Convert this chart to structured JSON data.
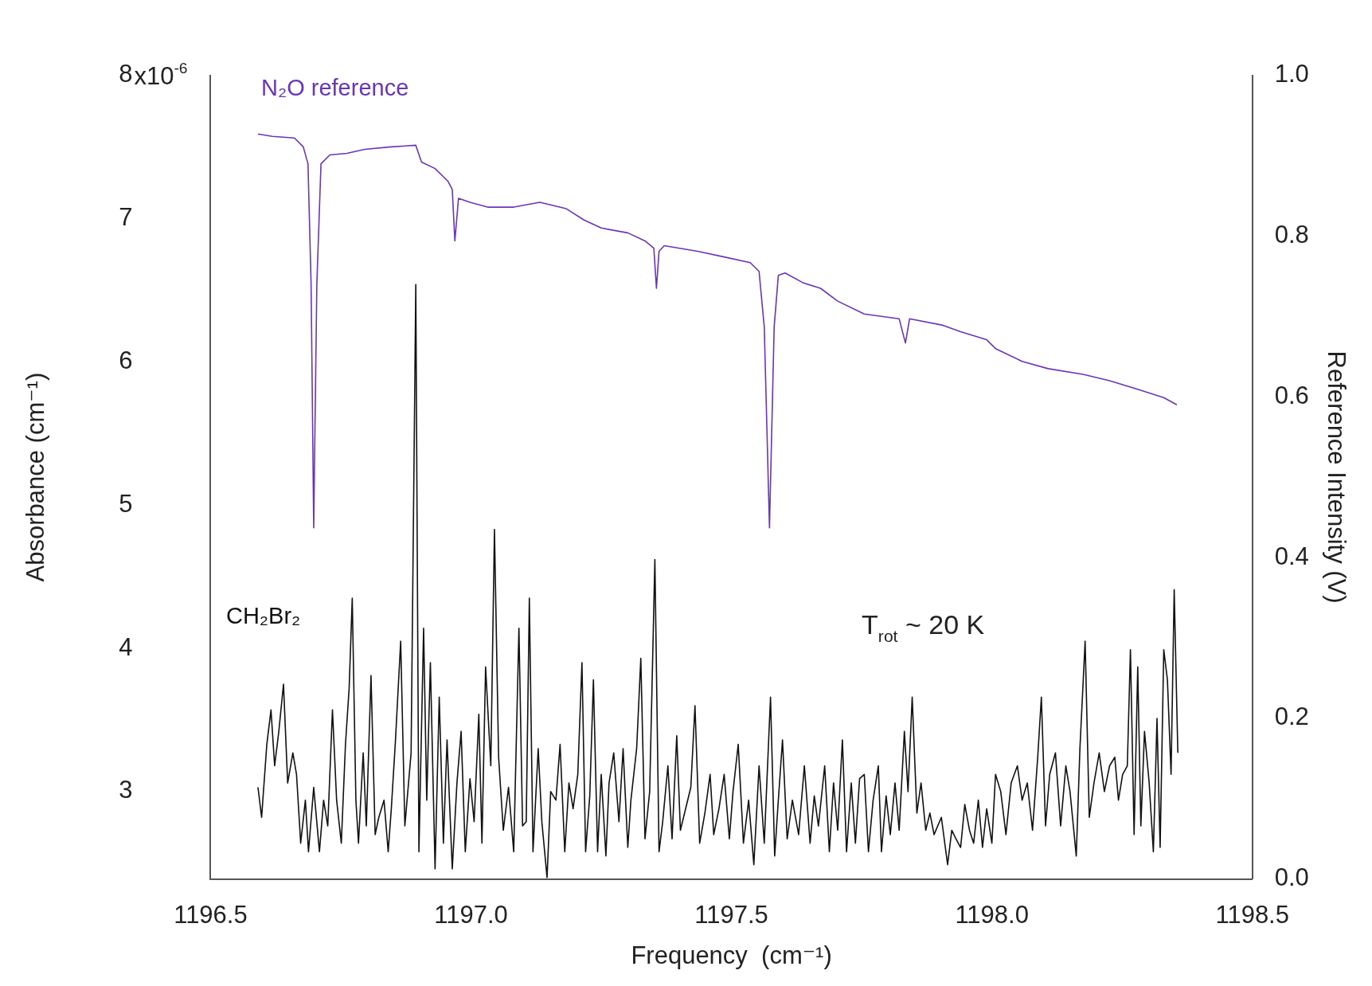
{
  "chart_data": {
    "type": "line",
    "xlabel": "Frequency  (cm⁻¹)",
    "ylabel": "Absorbance (cm⁻¹)",
    "y2label": "Reference Intensity (V)",
    "annotations": [
      "x10$^{-6}$",
      "T$_{rot}$ ~ 20 K"
    ],
    "xlim": [
      1196.5,
      1198.5
    ],
    "xticks": [
      {
        "value": 1196.5,
        "label": "1196.5"
      },
      {
        "value": 1197,
        "label": "1197.0"
      },
      {
        "value": 1197.5,
        "label": "1197.5"
      },
      {
        "value": 1198,
        "label": "1198.0"
      },
      {
        "value": 1198.5,
        "label": "1198.5"
      }
    ],
    "ylim": [
      2.39,
      8
    ],
    "yticks": [
      3,
      4,
      5,
      6,
      7,
      8
    ],
    "y2lim": [
      0,
      1
    ],
    "y2ticks": [
      {
        "value": 0,
        "label": "0.0"
      },
      {
        "value": 0.2,
        "label": "0.2"
      },
      {
        "value": 0.4,
        "label": "0.4"
      },
      {
        "value": 0.6,
        "label": "0.6"
      },
      {
        "value": 0.8,
        "label": "0.8"
      },
      {
        "value": 1,
        "label": "1.0"
      }
    ],
    "grid": false,
    "legend": false,
    "marker": "none",
    "line_style": "solid",
    "series": [
      {
        "name": "N₂O reference",
        "color": "#6a35b8",
        "axis": "y2",
        "x": [
          1196.591,
          1196.619,
          1196.661,
          1196.678,
          1196.687,
          1196.693,
          1196.698,
          1196.704,
          1196.712,
          1196.729,
          1196.762,
          1196.796,
          1196.847,
          1196.894,
          1196.905,
          1196.931,
          1196.956,
          1196.964,
          1196.969,
          1196.976,
          1196.998,
          1197.032,
          1197.082,
          1197.132,
          1197.183,
          1197.217,
          1197.25,
          1197.301,
          1197.334,
          1197.351,
          1197.356,
          1197.361,
          1197.371,
          1197.435,
          1197.486,
          1197.536,
          1197.553,
          1197.563,
          1197.573,
          1197.582,
          1197.59,
          1197.603,
          1197.637,
          1197.671,
          1197.704,
          1197.755,
          1197.822,
          1197.834,
          1197.842,
          1197.906,
          1197.94,
          1197.99,
          1198.007,
          1198.058,
          1198.108,
          1198.175,
          1198.226,
          1198.276,
          1198.33,
          1198.355
        ],
        "values": [
          0.927,
          0.924,
          0.922,
          0.911,
          0.89,
          0.74,
          0.437,
          0.74,
          0.89,
          0.901,
          0.903,
          0.908,
          0.911,
          0.913,
          0.892,
          0.884,
          0.868,
          0.858,
          0.794,
          0.847,
          0.842,
          0.836,
          0.836,
          0.842,
          0.834,
          0.82,
          0.81,
          0.804,
          0.794,
          0.785,
          0.735,
          0.781,
          0.788,
          0.781,
          0.774,
          0.767,
          0.756,
          0.687,
          0.437,
          0.687,
          0.751,
          0.754,
          0.742,
          0.735,
          0.719,
          0.703,
          0.697,
          0.667,
          0.697,
          0.689,
          0.681,
          0.671,
          0.66,
          0.644,
          0.635,
          0.628,
          0.62,
          0.61,
          0.599,
          0.59
        ]
      },
      {
        "name": "CH₂Br₂",
        "color": "#111111",
        "x": [
          1196.591,
          1196.598,
          1196.608,
          1196.616,
          1196.623,
          1196.631,
          1196.64,
          1196.648,
          1196.658,
          1196.665,
          1196.673,
          1196.682,
          1196.688,
          1196.698,
          1196.709,
          1196.717,
          1196.725,
          1196.734,
          1196.742,
          1196.751,
          1196.759,
          1196.766,
          1196.772,
          1196.779,
          1196.784,
          1196.793,
          1196.799,
          1196.808,
          1196.816,
          1196.823,
          1196.833,
          1196.841,
          1196.847,
          1196.855,
          1196.865,
          1196.873,
          1196.885,
          1196.894,
          1196.9,
          1196.909,
          1196.915,
          1196.922,
          1196.931,
          1196.939,
          1196.947,
          1196.954,
          1196.964,
          1196.973,
          1196.981,
          1196.989,
          1196.998,
          1197.006,
          1197.015,
          1197.021,
          1197.028,
          1197.038,
          1197.045,
          1197.053,
          1197.062,
          1197.072,
          1197.082,
          1197.092,
          1197.099,
          1197.106,
          1197.112,
          1197.119,
          1197.129,
          1197.136,
          1197.146,
          1197.153,
          1197.163,
          1197.171,
          1197.18,
          1197.188,
          1197.196,
          1197.205,
          1197.213,
          1197.22,
          1197.228,
          1197.235,
          1197.243,
          1197.25,
          1197.259,
          1197.265,
          1197.274,
          1197.284,
          1197.292,
          1197.301,
          1197.307,
          1197.318,
          1197.326,
          1197.334,
          1197.343,
          1197.353,
          1197.361,
          1197.368,
          1197.378,
          1197.386,
          1197.395,
          1197.402,
          1197.412,
          1197.422,
          1197.43,
          1197.439,
          1197.449,
          1197.459,
          1197.466,
          1197.476,
          1197.486,
          1197.496,
          1197.503,
          1197.513,
          1197.523,
          1197.533,
          1197.543,
          1197.553,
          1197.563,
          1197.575,
          1197.583,
          1197.59,
          1197.598,
          1197.607,
          1197.617,
          1197.629,
          1197.64,
          1197.651,
          1197.659,
          1197.667,
          1197.679,
          1197.688,
          1197.696,
          1197.704,
          1197.713,
          1197.721,
          1197.73,
          1197.738,
          1197.746,
          1197.755,
          1197.763,
          1197.772,
          1197.782,
          1197.788,
          1197.797,
          1197.805,
          1197.814,
          1197.822,
          1197.832,
          1197.839,
          1197.847,
          1197.856,
          1197.864,
          1197.873,
          1197.881,
          1197.889,
          1197.903,
          1197.915,
          1197.923,
          1197.931,
          1197.94,
          1197.948,
          1197.957,
          1197.965,
          1197.974,
          1197.982,
          1197.99,
          1198,
          1198.007,
          1198.017,
          1198.027,
          1198.037,
          1198.049,
          1198.058,
          1198.068,
          1198.078,
          1198.088,
          1198.095,
          1198.103,
          1198.111,
          1198.122,
          1198.132,
          1198.142,
          1198.15,
          1198.162,
          1198.169,
          1198.179,
          1198.187,
          1198.196,
          1198.206,
          1198.216,
          1198.226,
          1198.236,
          1198.243,
          1198.251,
          1198.26,
          1198.266,
          1198.273,
          1198.28,
          1198.286,
          1198.293,
          1198.302,
          1198.31,
          1198.317,
          1198.323,
          1198.33,
          1198.337,
          1198.344,
          1198.35,
          1198.357
        ],
        "values": [
          3.03,
          2.82,
          3.33,
          3.57,
          3.18,
          3.42,
          3.75,
          3.06,
          3.27,
          3.12,
          2.64,
          2.94,
          2.58,
          3.03,
          2.58,
          2.94,
          2.76,
          3.57,
          2.94,
          2.64,
          3.33,
          3.72,
          4.35,
          2.94,
          2.64,
          3.27,
          2.76,
          3.81,
          2.7,
          2.82,
          2.94,
          2.58,
          2.88,
          3.36,
          4.05,
          2.76,
          3.27,
          6.54,
          2.58,
          4.14,
          2.94,
          3.9,
          2.46,
          3.66,
          2.64,
          3.36,
          2.46,
          3.06,
          3.42,
          2.58,
          3.09,
          2.79,
          3.54,
          2.64,
          3.87,
          3.18,
          4.83,
          3.24,
          2.73,
          3.03,
          2.58,
          4.14,
          2.76,
          2.79,
          4.35,
          2.58,
          3.3,
          2.79,
          2.4,
          3,
          2.94,
          3.33,
          2.58,
          3.06,
          2.88,
          3.12,
          3.9,
          2.58,
          2.97,
          3.78,
          2.58,
          3.12,
          2.55,
          3.06,
          3.27,
          2.79,
          3.3,
          2.61,
          2.94,
          3.3,
          3.93,
          2.67,
          3,
          4.62,
          2.58,
          2.79,
          3.18,
          2.67,
          3.39,
          2.73,
          2.88,
          3.03,
          3.6,
          2.64,
          2.85,
          3.12,
          2.7,
          2.88,
          3.12,
          2.67,
          3,
          3.33,
          2.64,
          2.94,
          2.49,
          3.18,
          2.64,
          3.66,
          2.55,
          2.94,
          3.36,
          2.67,
          2.94,
          2.7,
          3.18,
          2.64,
          2.97,
          2.76,
          3.18,
          2.58,
          3.06,
          2.73,
          3.36,
          2.58,
          3.06,
          2.64,
          3.09,
          3.12,
          2.58,
          2.94,
          3.18,
          2.58,
          2.97,
          2.7,
          3.06,
          2.73,
          3.42,
          3,
          3.66,
          2.85,
          3.06,
          2.73,
          2.85,
          2.7,
          2.82,
          2.49,
          2.73,
          2.67,
          2.61,
          2.91,
          2.73,
          2.64,
          2.94,
          2.61,
          2.88,
          2.64,
          3.12,
          3,
          2.7,
          3.06,
          3.18,
          2.94,
          3.06,
          2.73,
          3.24,
          3.66,
          2.76,
          3.12,
          3.27,
          2.76,
          3.18,
          3,
          2.55,
          3.3,
          4.05,
          2.82,
          3.06,
          3.27,
          3,
          3.18,
          3.24,
          2.94,
          3.12,
          3.18,
          3.99,
          2.7,
          3.87,
          2.76,
          3.42,
          3.06,
          2.58,
          3.51,
          2.61,
          3.99,
          3.78,
          3.12,
          4.41,
          3.27
        ]
      }
    ]
  }
}
